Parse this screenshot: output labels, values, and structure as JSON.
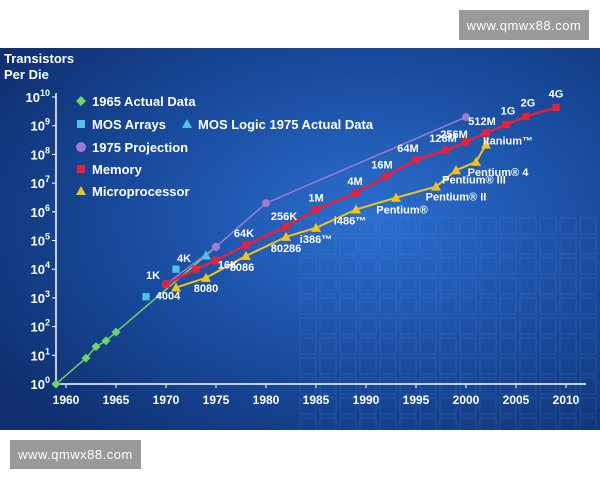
{
  "watermark": {
    "top": "www.qmwx88.com",
    "bottom": "www.qmwx88.com"
  },
  "chart_data": {
    "type": "scatter",
    "title": "",
    "ylabel": [
      "Transistors",
      "Per Die"
    ],
    "xlabel": "",
    "yscale": "log",
    "xlim": [
      1959,
      2012
    ],
    "ylim": [
      1,
      10000000000
    ],
    "x_ticks": [
      1960,
      1965,
      1970,
      1975,
      1980,
      1985,
      1990,
      1995,
      2000,
      2005,
      2010
    ],
    "y_ticks": [
      {
        "value": 1,
        "base": "10",
        "exp": "0"
      },
      {
        "value": 10,
        "base": "10",
        "exp": "1"
      },
      {
        "value": 100,
        "base": "10",
        "exp": "2"
      },
      {
        "value": 1000,
        "base": "10",
        "exp": "3"
      },
      {
        "value": 10000,
        "base": "10",
        "exp": "4"
      },
      {
        "value": 100000,
        "base": "10",
        "exp": "5"
      },
      {
        "value": 1000000,
        "base": "10",
        "exp": "6"
      },
      {
        "value": 10000000,
        "base": "10",
        "exp": "7"
      },
      {
        "value": 100000000,
        "base": "10",
        "exp": "8"
      },
      {
        "value": 1000000000,
        "base": "10",
        "exp": "9"
      },
      {
        "value": 10000000000,
        "base": "10",
        "exp": "10"
      }
    ],
    "legend_position": "top-left",
    "legend": [
      {
        "label": "1965 Actual Data",
        "marker": "diamond",
        "color": "#6fd36a"
      },
      {
        "label": "MOS Arrays",
        "marker": "square",
        "color": "#4fc3e6"
      },
      {
        "label": "MOS Logic 1975 Actual Data",
        "marker": "triangle",
        "color": "#4fc3e6"
      },
      {
        "label": "1975 Projection",
        "marker": "circle",
        "color": "#a07bd0"
      },
      {
        "label": "Memory",
        "marker": "square",
        "color": "#e8213a"
      },
      {
        "label": "Microprocessor",
        "marker": "triangle",
        "color": "#f0c419"
      }
    ],
    "series": [
      {
        "name": "1965 Actual Data",
        "marker": "diamond",
        "color": "#6fd36a",
        "points": [
          {
            "x": 1959,
            "y": 1
          },
          {
            "x": 1962,
            "y": 8
          },
          {
            "x": 1963,
            "y": 20
          },
          {
            "x": 1964,
            "y": 32
          },
          {
            "x": 1965,
            "y": 64
          },
          {
            "x": 1975,
            "y": 60000
          }
        ]
      },
      {
        "name": "MOS Arrays",
        "marker": "square",
        "color": "#4fc3e6",
        "points": [
          {
            "x": 1968,
            "y": 1100
          },
          {
            "x": 1971,
            "y": 10000
          }
        ]
      },
      {
        "name": "MOS Logic 1975 Actual Data",
        "marker": "triangle",
        "color": "#4fc3e6",
        "points": [
          {
            "x": 1974,
            "y": 30000
          }
        ]
      },
      {
        "name": "1975 Projection",
        "marker": "circle",
        "color": "#a07bd0",
        "points": [
          {
            "x": 1970,
            "y": 3000
          },
          {
            "x": 1975,
            "y": 60000
          },
          {
            "x": 1980,
            "y": 2000000
          },
          {
            "x": 2000,
            "y": 2000000000
          }
        ]
      },
      {
        "name": "Memory",
        "marker": "square",
        "color": "#e8213a",
        "points": [
          {
            "x": 1970,
            "y": 3000,
            "label": "1K"
          },
          {
            "x": 1973,
            "y": 10000,
            "label": "4K"
          },
          {
            "x": 1975,
            "y": 20000,
            "label": "16K"
          },
          {
            "x": 1978,
            "y": 70000,
            "label": "64K"
          },
          {
            "x": 1982,
            "y": 300000,
            "label": "256K"
          },
          {
            "x": 1985,
            "y": 1200000,
            "label": "1M"
          },
          {
            "x": 1989,
            "y": 4500000,
            "label": "4M"
          },
          {
            "x": 1992,
            "y": 17000000,
            "label": "16M"
          },
          {
            "x": 1995,
            "y": 65000000,
            "label": "64M"
          },
          {
            "x": 1998,
            "y": 140000000,
            "label": "128M"
          },
          {
            "x": 2000,
            "y": 270000000,
            "label": "256M"
          },
          {
            "x": 2002,
            "y": 560000000,
            "label": "512M"
          },
          {
            "x": 2004,
            "y": 1100000000,
            "label": "1G"
          },
          {
            "x": 2006,
            "y": 2100000000,
            "label": "2G"
          },
          {
            "x": 2009,
            "y": 4300000000,
            "label": "4G"
          }
        ]
      },
      {
        "name": "Microprocessor",
        "marker": "triangle",
        "color": "#f0c419",
        "points": [
          {
            "x": 1971,
            "y": 2300,
            "label": "4004"
          },
          {
            "x": 1974,
            "y": 5000,
            "label": "8080"
          },
          {
            "x": 1978,
            "y": 29000,
            "label": "8086"
          },
          {
            "x": 1982,
            "y": 134000,
            "label": "80286"
          },
          {
            "x": 1985,
            "y": 275000,
            "label": "i386™"
          },
          {
            "x": 1989,
            "y": 1200000,
            "label": "i486™"
          },
          {
            "x": 1993,
            "y": 3100000,
            "label": "Pentium®"
          },
          {
            "x": 1997,
            "y": 7500000,
            "label": "Pentium® II"
          },
          {
            "x": 1999,
            "y": 28000000,
            "label": "Pentium® III"
          },
          {
            "x": 2001,
            "y": 55000000,
            "label": "Pentium® 4"
          },
          {
            "x": 2002,
            "y": 220000000,
            "label": "Itanium™"
          }
        ]
      }
    ]
  }
}
